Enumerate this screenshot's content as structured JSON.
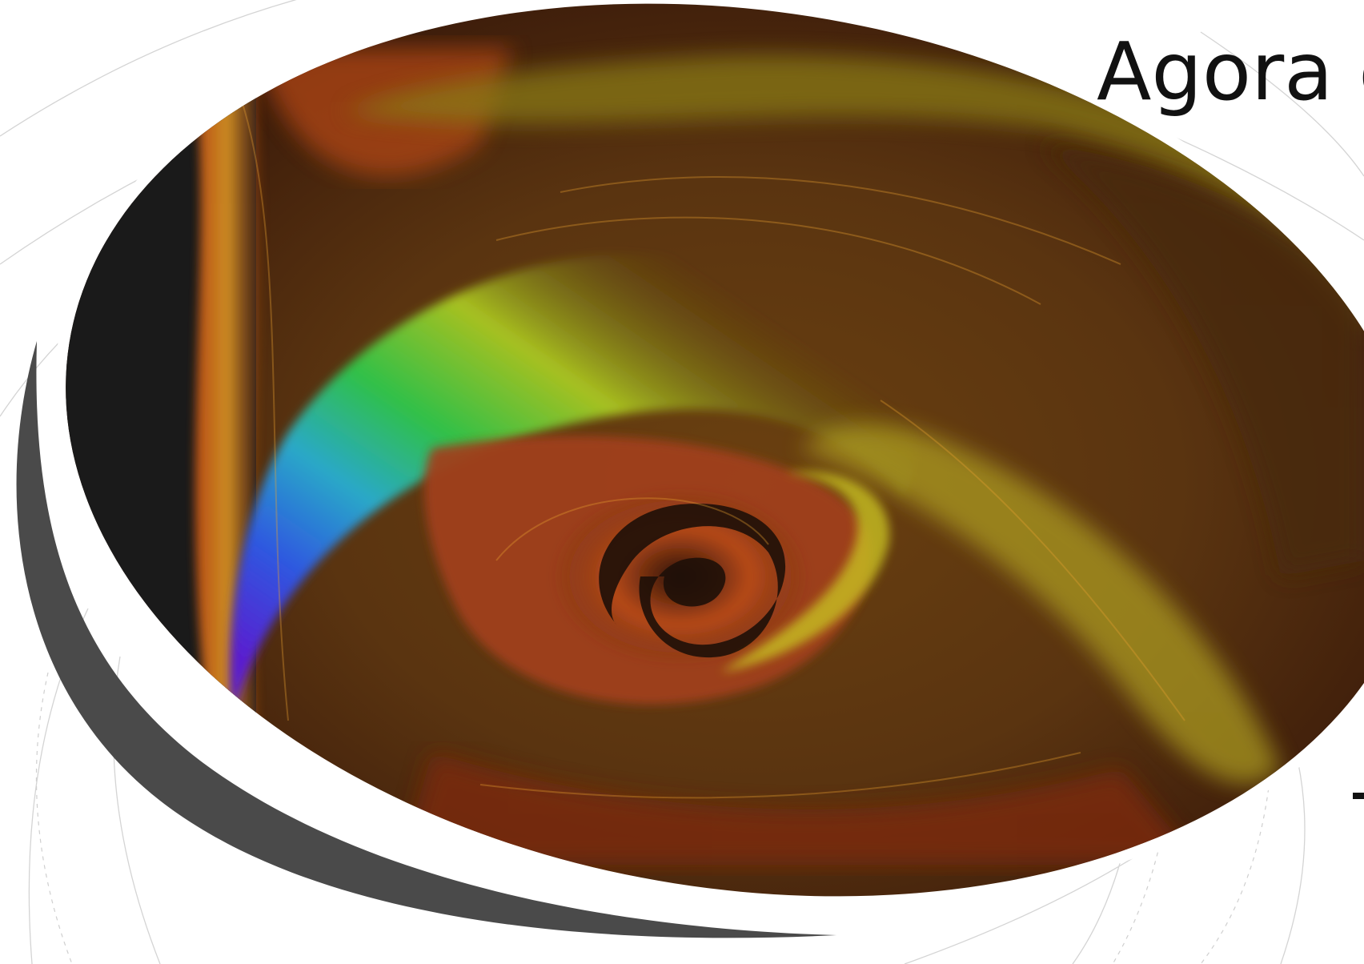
{
  "slide": {
    "title": "Agora é",
    "background_color": "#ffffff",
    "line_color": "#d0d0d0",
    "swoosh_color": "#4a4a4a",
    "visual": {
      "description_icon": "flow-vortex-visualization",
      "colors": [
        "#1a1a1a",
        "#7a2010",
        "#c84a1a",
        "#e08a20",
        "#c8c020",
        "#4cc030",
        "#2aa0c8",
        "#3050e0",
        "#6020d0"
      ]
    }
  }
}
